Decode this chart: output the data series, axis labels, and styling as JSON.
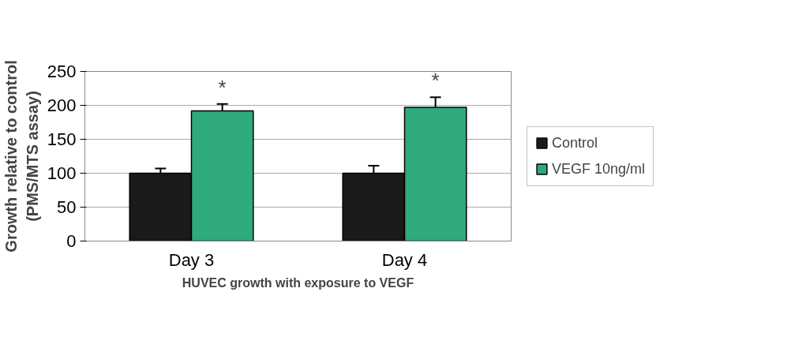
{
  "chart_data": {
    "type": "bar",
    "xlabel": "HUVEC growth with exposure to VEGF",
    "ylabel": "Growth relative to control\n(PMS/MTS assay)",
    "categories": [
      "Day 3",
      "Day 4"
    ],
    "series": [
      {
        "name": "Control",
        "color": "#1a1a1a",
        "values": [
          100,
          100
        ],
        "errors": [
          7,
          11
        ]
      },
      {
        "name": "VEGF 10ng/ml",
        "color": "#2eaa7c",
        "values": [
          192,
          197
        ],
        "errors": [
          10,
          15
        ]
      }
    ],
    "ylim": [
      0,
      250
    ],
    "yticks": [
      0,
      50,
      100,
      150,
      200,
      250
    ],
    "grid": "y",
    "legend": "right",
    "annotations": [
      "*",
      "*"
    ]
  }
}
